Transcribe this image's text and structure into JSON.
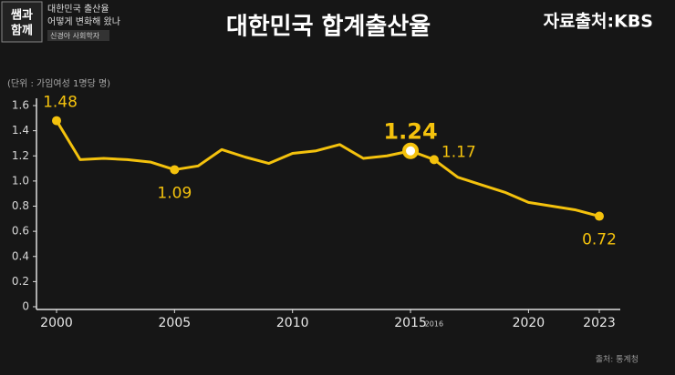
{
  "logo": {
    "lines": [
      "쌤과",
      "함께"
    ]
  },
  "episode": {
    "lines": [
      "대한민국 출산율",
      "어떻게 변화해 왔나"
    ],
    "speaker": "신경아 사회학자"
  },
  "credit": "자료출처:KBS",
  "footer": "출처: 통계청",
  "chart_data": {
    "type": "line",
    "title": "대한민국 합계출산율",
    "unit_label": "(단위 : 가임여성 1명당 명)",
    "x": [
      2000,
      2001,
      2002,
      2003,
      2004,
      2005,
      2006,
      2007,
      2008,
      2009,
      2010,
      2011,
      2012,
      2013,
      2014,
      2015,
      2016,
      2017,
      2018,
      2019,
      2020,
      2021,
      2022,
      2023
    ],
    "series": [
      {
        "name": "합계출산율",
        "color": "#f4c20d",
        "values": [
          1.48,
          1.17,
          1.18,
          1.17,
          1.15,
          1.09,
          1.12,
          1.25,
          1.19,
          1.14,
          1.22,
          1.24,
          1.29,
          1.18,
          1.2,
          1.24,
          1.17,
          1.03,
          0.97,
          0.91,
          0.83,
          0.8,
          0.77,
          0.72
        ]
      }
    ],
    "data_labels": [
      0,
      5,
      15,
      16,
      23
    ],
    "emphasis": 15,
    "xlim": [
      2000,
      2023
    ],
    "xticks": [
      2000,
      2005,
      2010,
      2015,
      2020,
      2023
    ],
    "minor_xticks": [
      2016
    ],
    "ylim": [
      0,
      1.6
    ],
    "yticks": [
      0,
      0.2,
      0.4,
      0.6,
      {
        "value": 0.8,
        "label": "0.8"
      },
      {
        "value": 1,
        "label": "1.0"
      },
      1.2,
      1.4,
      1.6
    ],
    "grid": false
  }
}
